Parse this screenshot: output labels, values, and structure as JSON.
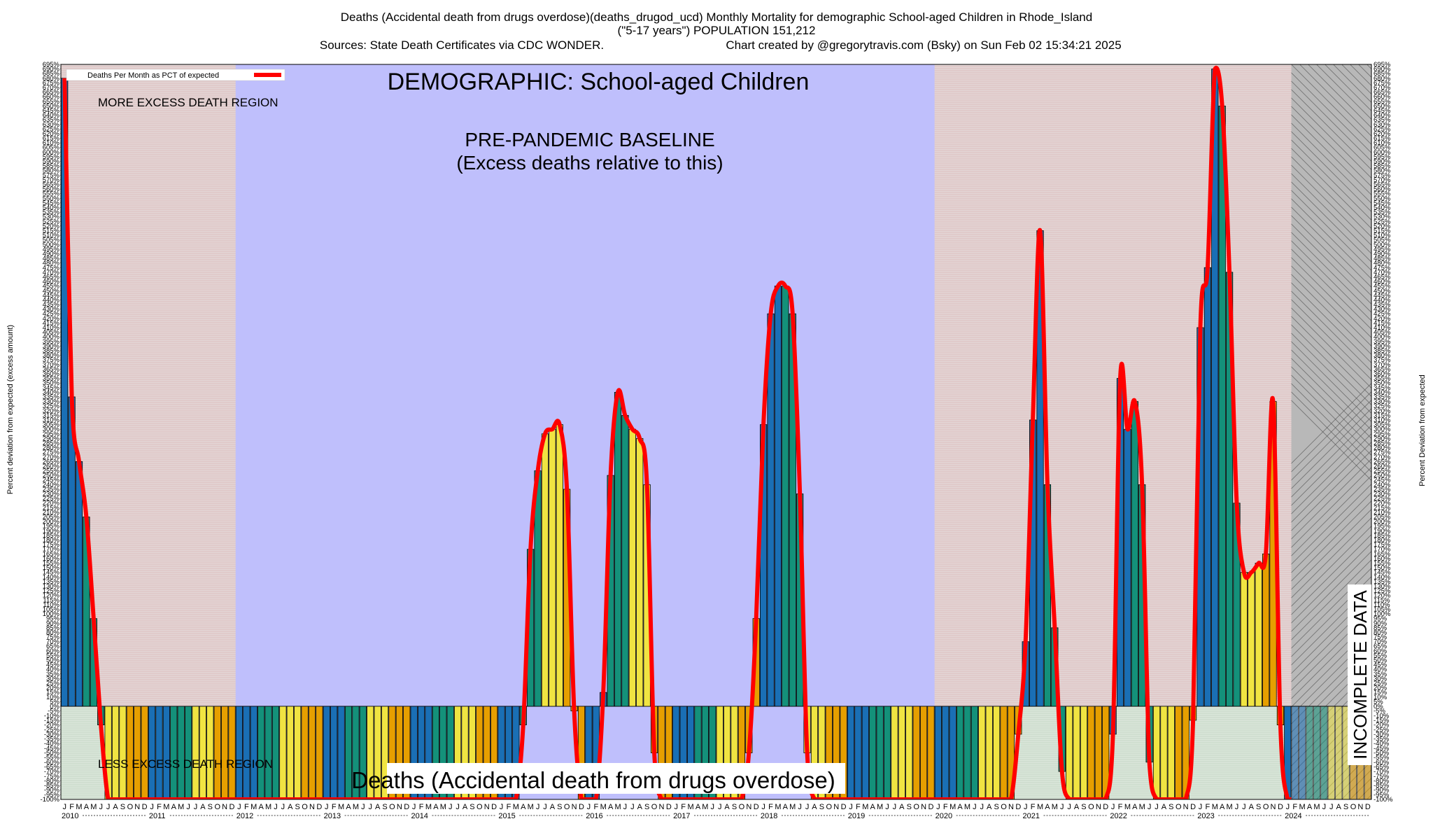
{
  "header": {
    "line1": "Deaths (Accidental death from drugs overdose)(deaths_drugod_ucd) Monthly Mortality for demographic School-aged Children in Rhode_Island",
    "line2": "(\"5-17 years\") POPULATION 151,212",
    "line3a": "Sources: State Death Certificates via CDC WONDER.",
    "line3b": "Chart created by @gregorytravis.com (Bsky) on Sun Feb 02 15:34:21 2025"
  },
  "annotations": {
    "demographic": "DEMOGRAPHIC: School-aged Children",
    "baseline1": "PRE-PANDEMIC BASELINE",
    "baseline2": "(Excess deaths relative to this)",
    "more_excess": "MORE EXCESS DEATH REGION",
    "less_excess": "LESS EXCESS DEATH REGION",
    "incomplete": "INCOMPLETE DATA",
    "footer": "Deaths (Accidental death from drugs overdose)"
  },
  "legend": {
    "label": "Deaths Per Month as PCT of expected"
  },
  "axes": {
    "ylabel_left": "Percent deviation from expected (excess amount)",
    "ylabel_right": "Percent Deviation from expected"
  },
  "colors": {
    "bar_cycle": [
      "#1a6fb5",
      "#14917a",
      "#f0e442",
      "#e69f00"
    ],
    "line": "#ff0000",
    "baseline_band": "#bfbffc",
    "upper_band": "#e3d6d6",
    "lower_band": "#dae6da"
  },
  "chart_data": {
    "type": "bar",
    "start": "2010-01",
    "baseline_years": "2012-2019",
    "incomplete_from": "2024-02",
    "ylim": [
      -100,
      695
    ],
    "month_letters": [
      "J",
      "F",
      "M",
      "A",
      "M",
      "J",
      "J",
      "A",
      "S",
      "O",
      "N",
      "D"
    ],
    "years": [
      "2010",
      "2011",
      "2012",
      "2013",
      "2014",
      "2015",
      "2016",
      "2017",
      "2018",
      "2019",
      "2020",
      "2021",
      "2022",
      "2023",
      "2024"
    ],
    "values": [
      680,
      335,
      265,
      205,
      95,
      -20,
      -100,
      -100,
      -100,
      -100,
      -100,
      -100,
      -100,
      -100,
      -100,
      -100,
      -100,
      -100,
      -100,
      -100,
      -100,
      -100,
      -100,
      -100,
      -100,
      -100,
      -100,
      -100,
      -100,
      -100,
      -100,
      -100,
      -100,
      -100,
      -100,
      -100,
      -100,
      -100,
      -100,
      -100,
      -100,
      -100,
      -100,
      -100,
      -100,
      -100,
      -100,
      -100,
      -100,
      -100,
      -100,
      -100,
      -100,
      -100,
      -100,
      -100,
      -100,
      -100,
      -100,
      -100,
      -100,
      -100,
      -100,
      -20,
      170,
      255,
      295,
      300,
      305,
      235,
      -5,
      -100,
      -100,
      -100,
      15,
      250,
      340,
      315,
      300,
      290,
      240,
      -50,
      -100,
      -100,
      -100,
      -100,
      -100,
      -100,
      -100,
      -100,
      -100,
      -100,
      -100,
      -100,
      -50,
      95,
      305,
      425,
      455,
      455,
      425,
      230,
      -50,
      -100,
      -100,
      -100,
      -100,
      -100,
      -100,
      -100,
      -100,
      -100,
      -100,
      -100,
      -100,
      -100,
      -100,
      -100,
      -100,
      -100,
      -100,
      -100,
      -100,
      -100,
      -100,
      -100,
      -100,
      -100,
      -100,
      -100,
      -100,
      -30,
      70,
      310,
      515,
      240,
      85,
      -70,
      -100,
      -100,
      -100,
      -100,
      -100,
      -100,
      -30,
      355,
      300,
      330,
      240,
      -60,
      -100,
      -100,
      -100,
      -100,
      -100,
      -15,
      410,
      475,
      690,
      650,
      470,
      220,
      145,
      145,
      155,
      165,
      330,
      -20,
      -100,
      -100,
      -100,
      -100,
      -100,
      -100,
      -100,
      -100,
      -100,
      -100,
      -100,
      -100
    ],
    "yticks": [
      -100,
      -95,
      -90,
      -85,
      -80,
      -75,
      -70,
      -65,
      -60,
      -55,
      -50,
      -45,
      -40,
      -35,
      -30,
      -25,
      -20,
      -15,
      -10,
      -5,
      0,
      5,
      10,
      15,
      20,
      25,
      30,
      35,
      40,
      45,
      50,
      55,
      60,
      65,
      70,
      75,
      80,
      85,
      90,
      95,
      100,
      105,
      110,
      115,
      120,
      125,
      130,
      135,
      140,
      145,
      150,
      155,
      160,
      165,
      170,
      175,
      180,
      185,
      190,
      195,
      200,
      205,
      210,
      215,
      220,
      225,
      230,
      235,
      240,
      245,
      250,
      255,
      260,
      265,
      270,
      275,
      280,
      285,
      290,
      295,
      300,
      305,
      310,
      315,
      320,
      325,
      330,
      335,
      340,
      345,
      350,
      355,
      360,
      365,
      370,
      375,
      380,
      385,
      390,
      395,
      400,
      405,
      410,
      415,
      420,
      425,
      430,
      435,
      440,
      445,
      450,
      455,
      460,
      465,
      470,
      475,
      480,
      485,
      490,
      495,
      500,
      505,
      510,
      515,
      520,
      525,
      530,
      535,
      540,
      545,
      550,
      555,
      560,
      565,
      570,
      575,
      580,
      585,
      590,
      595,
      600,
      605,
      610,
      615,
      620,
      625,
      630,
      635,
      640,
      645,
      650,
      655,
      660,
      665,
      670,
      675,
      680,
      685,
      690,
      695
    ]
  }
}
